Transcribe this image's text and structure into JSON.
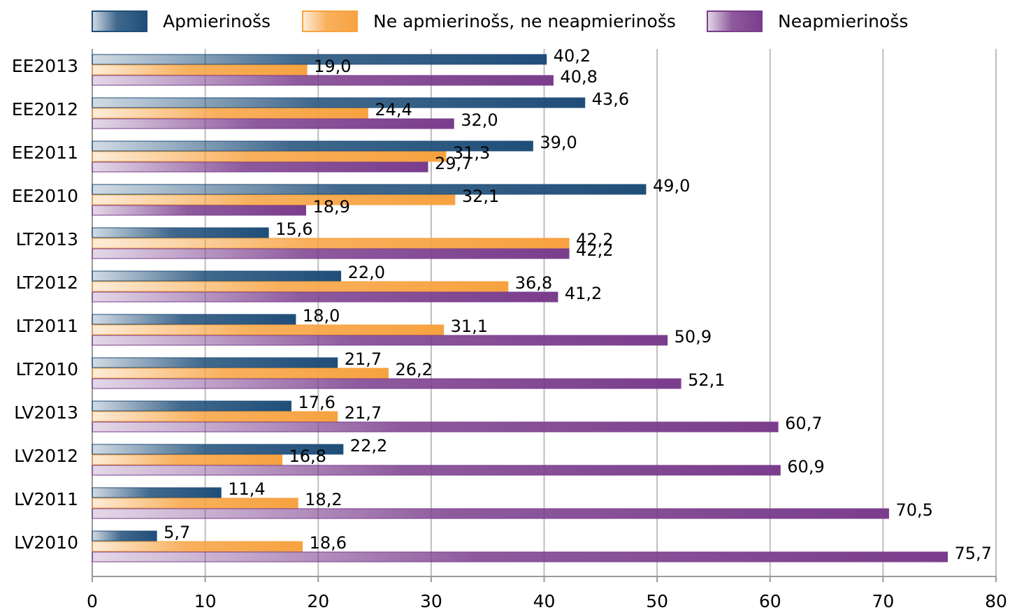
{
  "chart_data": {
    "type": "hbar",
    "categories": [
      "EE2013",
      "EE2012",
      "EE2011",
      "EE2010",
      "LT2013",
      "LT2012",
      "LT2011",
      "LT2010",
      "LV2013",
      "LV2012",
      "LV2011",
      "LV2010"
    ],
    "series": [
      {
        "name": "Apmierinošs",
        "color": "#1f4e79",
        "values": [
          40.2,
          43.6,
          39.0,
          49.0,
          15.6,
          22.0,
          18.0,
          21.7,
          17.6,
          22.2,
          11.4,
          5.7
        ],
        "value_labels": [
          "40,2",
          "43,6",
          "39,0",
          "49,0",
          "15,6",
          "22,0",
          "18,0",
          "21,7",
          "17,6",
          "22,2",
          "11,4",
          "5,7"
        ]
      },
      {
        "name": "Ne apmierinošs, ne neapmierinošs",
        "color": "#f7a240",
        "values": [
          19.0,
          24.4,
          31.3,
          32.1,
          42.2,
          36.8,
          31.1,
          26.2,
          21.7,
          16.8,
          18.2,
          18.6
        ],
        "value_labels": [
          "19,0",
          "24,4",
          "31,3",
          "32,1",
          "42,2",
          "36,8",
          "31,1",
          "26,2",
          "21,7",
          "16,8",
          "18,2",
          "18,6"
        ]
      },
      {
        "name": "Neapmierinošs",
        "color": "#7a3d8c",
        "values": [
          40.8,
          32.0,
          29.7,
          18.9,
          42.2,
          41.2,
          50.9,
          52.1,
          60.7,
          60.9,
          70.5,
          75.7
        ],
        "value_labels": [
          "40,8",
          "32,0",
          "29,7",
          "18,9",
          "42,2",
          "41,2",
          "50,9",
          "52,1",
          "60,7",
          "60,9",
          "70,5",
          "75,7"
        ]
      }
    ],
    "xlim": [
      0,
      80
    ],
    "xticks": [
      0,
      10,
      20,
      30,
      40,
      50,
      60,
      70,
      80
    ],
    "grid": true,
    "legend": "top"
  }
}
